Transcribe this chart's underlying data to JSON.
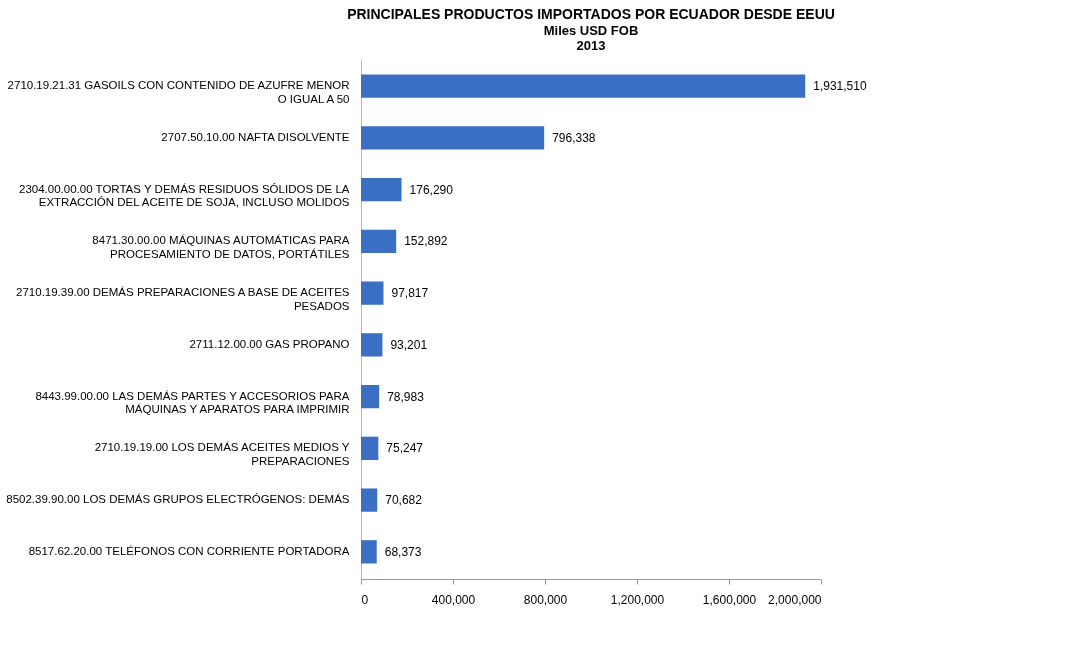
{
  "chart_data": {
    "type": "bar",
    "orientation": "horizontal",
    "title": "PRINCIPALES PRODUCTOS IMPORTADOS POR ECUADOR DESDE EEUU",
    "subtitle": "Miles USD FOB\n2013",
    "categories": [
      "2710.19.21.31 GASOILS CON CONTENIDO DE AZUFRE MENOR O IGUAL A 50",
      "2707.50.10.00 NAFTA DISOLVENTE",
      "2304.00.00.00 TORTAS Y DEMÁS RESIDUOS SÓLIDOS DE LA EXTRACCIÓN DEL ACEITE DE SOJA, INCLUSO MOLIDOS",
      "8471.30.00.00 MÁQUINAS AUTOMÁTICAS PARA PROCESAMIENTO DE DATOS, PORTÁTILES",
      "2710.19.39.00 DEMÁS PREPARACIONES A BASE DE ACEITES PESADOS",
      "2711.12.00.00 GAS PROPANO",
      "8443.99.00.00 LAS DEMÁS PARTES Y ACCESORIOS PARA MÁQUINAS Y APARATOS PARA IMPRIMIR",
      "2710.19.19.00 LOS DEMÁS ACEITES MEDIOS Y PREPARACIONES",
      "8502.39.90.00 LOS DEMÁS GRUPOS ELECTRÓGENOS: DEMÁS",
      "8517.62.20.00 TELÉFONOS CON CORRIENTE PORTADORA"
    ],
    "values": [
      1931510,
      796338,
      176290,
      152892,
      97817,
      93201,
      78983,
      75247,
      70682,
      68373
    ],
    "value_labels": [
      "1,931,510",
      "796,338",
      "176,290",
      "152,892",
      "97,817",
      "93,201",
      "78,983",
      "75,247",
      "70,682",
      "68,373"
    ],
    "color": "#3a6fc4",
    "xlim": [
      0,
      2000000
    ],
    "xticks": [
      0,
      {
        "value": 400000,
        "label": "400,000"
      },
      {
        "value": 800000,
        "label": "800,000"
      },
      {
        "value": 1200000,
        "label": "1,200,000"
      },
      {
        "value": 1600000,
        "label": "1,600,000"
      },
      {
        "value": 2000000,
        "label": "2,000,000"
      }
    ],
    "grid": false
  }
}
